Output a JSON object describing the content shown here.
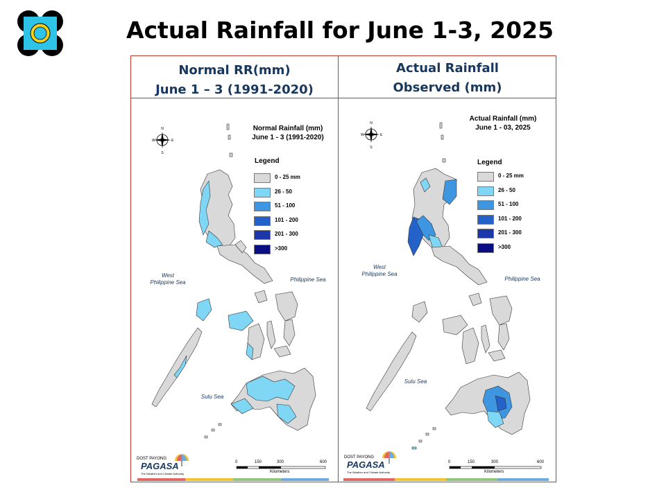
{
  "slide": {
    "title": "Actual Rainfall for June 1-3, 2025"
  },
  "panels": {
    "left_header": [
      "Normal RR(mm)",
      "June 1 – 3 (1991-2020)"
    ],
    "right_header": [
      "Actual Rainfall",
      "Observed (mm)"
    ]
  },
  "maps": {
    "left": {
      "title": [
        "Normal Rainfall (mm)",
        "June 1 - 3 (1991-2020)"
      ]
    },
    "right": {
      "title": [
        "Actual Rainfall (mm)",
        "June 1 - 03, 2025"
      ]
    },
    "legend_title": "Legend",
    "legend": [
      {
        "label": "0 - 25 mm",
        "color": "#d9d9d9"
      },
      {
        "label": "26 - 50",
        "color": "#7fd7f5"
      },
      {
        "label": "51 - 100",
        "color": "#3f96e0"
      },
      {
        "label": "101 - 200",
        "color": "#2262c9"
      },
      {
        "label": "201 - 300",
        "color": "#1c38a8"
      },
      {
        "label": ">300",
        "color": "#0b0d82"
      }
    ],
    "seas": {
      "west": [
        "West",
        "Philippine Sea"
      ],
      "east": "Philippine Sea",
      "south": "Sulu Sea"
    },
    "compass": {
      "n": "N",
      "s": "S",
      "e": "E",
      "w": "W"
    },
    "scale": {
      "ticks": [
        "0",
        "150",
        "300",
        "600"
      ],
      "unit": "Kilometers"
    },
    "brand": {
      "name": "PAGASA",
      "tagline": "The Weather and Climate Authority",
      "small": "DOST PAYONG"
    }
  },
  "colors": {
    "frame": "#c0392b",
    "header_text": "#17375e",
    "land_gray": "#d9d9d9",
    "brand_stripes": [
      "#e06666",
      "#f1c232",
      "#93c47d",
      "#6fa8dc"
    ]
  }
}
